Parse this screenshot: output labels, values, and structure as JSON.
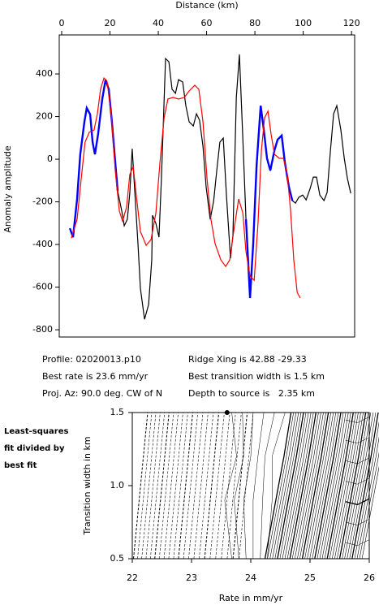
{
  "chart_data": [
    {
      "type": "line",
      "x_label": "Distance (km)",
      "y_label": "Anomaly amplitude",
      "xlim": [
        -1.0,
        121.3
      ],
      "ylim": [
        -834,
        583
      ],
      "xticks": [
        0,
        20,
        40,
        60,
        80,
        100,
        120
      ],
      "yticks": [
        400,
        200,
        0,
        -200,
        -400,
        -600,
        -800
      ],
      "series": [
        {
          "color": "#000000",
          "x": [
            3.4,
            4.7,
            6.4,
            7.7,
            9.4,
            10.4,
            11.8,
            12.8,
            13.8,
            15.1,
            16.8,
            18.2,
            19.5,
            20.8,
            22.2,
            23.2,
            24.9,
            25.9,
            27.2,
            28.2,
            29.2,
            30.3,
            31.6,
            32.6,
            34.3,
            36.0,
            37.3,
            37.6,
            39.0,
            40.3,
            41.3,
            43.0,
            44.4,
            45.7,
            47.1,
            48.4,
            50.1,
            51.4,
            52.8,
            54.5,
            55.8,
            57.1,
            58.5,
            59.8,
            61.5,
            62.9,
            64.2,
            65.5,
            66.9,
            68.2,
            69.9,
            70.9,
            72.3,
            73.6,
            75.0,
            76.3,
            78.0,
            79.3,
            80.7,
            82.4,
            83.7,
            85.0,
            86.4,
            88.1,
            89.4,
            91.1,
            92.4,
            94.1,
            95.5,
            96.8,
            98.2,
            99.8,
            101.2,
            102.9,
            104.2,
            105.5,
            106.9,
            108.6,
            109.9,
            111.3,
            112.6,
            113.9,
            115.6,
            117.0,
            118.3,
            119.7
          ],
          "values": [
            -324,
            -366,
            -187,
            23,
            175,
            240,
            210,
            80,
            23,
            118,
            282,
            373,
            328,
            175,
            -15,
            -149,
            -244,
            -312,
            -282,
            -160,
            49,
            -160,
            -396,
            -606,
            -751,
            -682,
            -472,
            -263,
            -301,
            -366,
            -91,
            472,
            457,
            328,
            309,
            373,
            362,
            251,
            175,
            156,
            213,
            183,
            61,
            -130,
            -282,
            -198,
            -53,
            80,
            99,
            -168,
            -465,
            -358,
            290,
            491,
            99,
            -282,
            -651,
            -396,
            -27,
            251,
            137,
            4,
            -53,
            42,
            92,
            111,
            -15,
            -130,
            -194,
            -206,
            -179,
            -168,
            -191,
            -137,
            -84,
            -84,
            -168,
            -194,
            -156,
            42,
            213,
            251,
            137,
            4,
            -91,
            -160
          ]
        },
        {
          "color": "#0000ff",
          "x": [
            3.4,
            4.7,
            6.4,
            7.7,
            9.4,
            10.4,
            11.8,
            12.8,
            13.8,
            15.1,
            16.8,
            18.2,
            19.5,
            20.8,
            22.2,
            23.2,
            null,
            76.3,
            78.0,
            79.3,
            80.7,
            82.4,
            83.7,
            85.0,
            86.4,
            88.1,
            89.4,
            91.1,
            92.4,
            94.1,
            95.5
          ],
          "values": [
            -324,
            -366,
            -187,
            23,
            175,
            240,
            210,
            80,
            23,
            118,
            282,
            373,
            328,
            175,
            -15,
            -149,
            null,
            -282,
            -651,
            -396,
            -27,
            251,
            137,
            4,
            -53,
            42,
            92,
            111,
            -15,
            -130,
            -194
          ]
        },
        {
          "color": "#ff0000",
          "x": [
            4.0,
            6.4,
            8.1,
            9.7,
            11.4,
            13.4,
            14.8,
            16.1,
            17.5,
            18.8,
            20.5,
            22.2,
            23.9,
            25.2,
            26.9,
            28.2,
            29.6,
            30.9,
            32.6,
            35.0,
            37.0,
            39.0,
            40.7,
            42.4,
            44.0,
            46.1,
            48.4,
            50.8,
            52.8,
            55.1,
            56.8,
            58.5,
            60.2,
            61.8,
            63.5,
            65.9,
            67.9,
            69.6,
            71.3,
            73.3,
            75.0,
            76.3,
            78.0,
            79.7,
            81.3,
            82.7,
            84.0,
            85.4,
            86.7,
            88.1,
            90.1,
            91.8,
            93.4,
            94.8,
            96.1,
            97.5,
            98.8
          ],
          "values": [
            -370,
            -282,
            -91,
            80,
            126,
            137,
            213,
            328,
            381,
            366,
            213,
            -53,
            -244,
            -290,
            -225,
            -72,
            -34,
            -168,
            -339,
            -404,
            -377,
            -252,
            -15,
            194,
            282,
            290,
            282,
            290,
            320,
            347,
            328,
            175,
            -91,
            -282,
            -396,
            -472,
            -503,
            -472,
            -332,
            -187,
            -252,
            -434,
            -549,
            -568,
            -301,
            42,
            194,
            225,
            118,
            23,
            4,
            4,
            -72,
            -244,
            -472,
            -625,
            -651
          ]
        }
      ],
      "annotations": [
        "Profile: 02020013.p10",
        "Best rate is 23.6 mm/yr",
        "Proj. Az: 90.0 deg. CW of N",
        "Ridge Xing is 42.88 -29.33",
        "Best transition width is 1.5 km",
        "Depth to source is   2.35 km"
      ]
    },
    {
      "type": "contour",
      "x_label": "Rate in mm/yr",
      "y_label": "Transition width in km",
      "xlim": [
        22,
        26
      ],
      "ylim": [
        0.5,
        1.5
      ],
      "xticks": [
        22,
        23,
        24,
        25,
        26
      ],
      "yticks": [
        1.5,
        {
          "value": 1,
          "label": "1.0"
        },
        0.5
      ],
      "best_fit": {
        "x": 23.6,
        "y": 1.5
      },
      "side_note": [
        "Least-squares",
        "fit divided by",
        "best fit"
      ]
    }
  ]
}
